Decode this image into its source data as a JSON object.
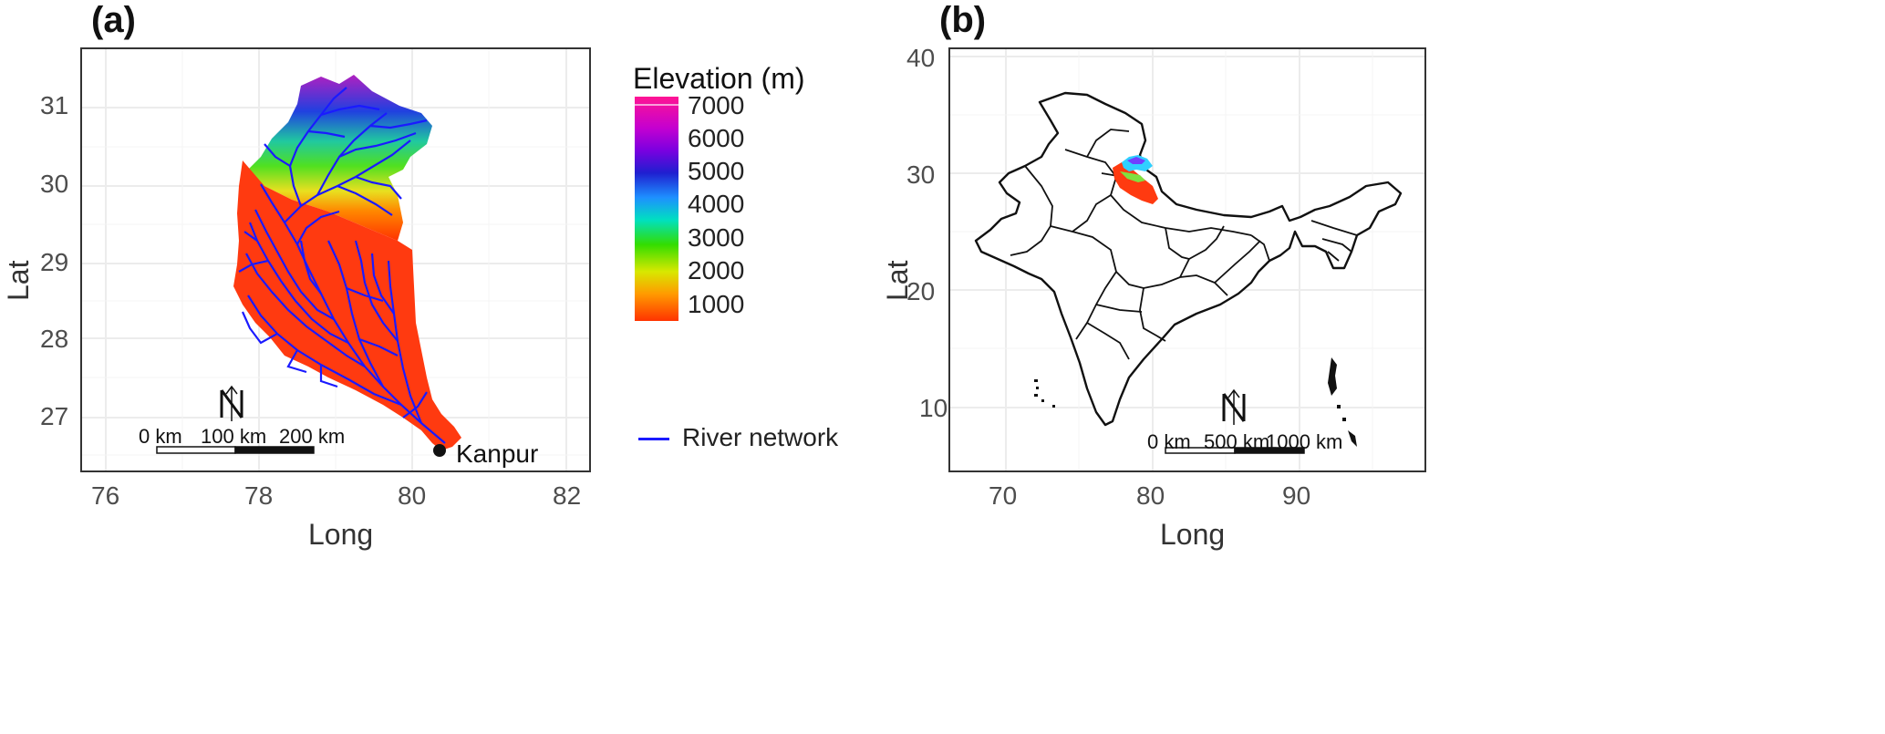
{
  "panel_a": {
    "label": "(a)",
    "x_axis": {
      "title": "Long",
      "ticks": [
        "76",
        "78",
        "80",
        "82"
      ]
    },
    "y_axis": {
      "title": "Lat",
      "ticks": [
        "31",
        "30",
        "29",
        "28",
        "27"
      ]
    },
    "scale_bar": [
      "0 km",
      "100 km",
      "200 km"
    ],
    "north_arrow": "N",
    "outlet": {
      "name": "Kanpur",
      "long": 80.35,
      "lat": 26.55
    },
    "elevation_legend": {
      "title": "Elevation (m)",
      "ticks": [
        "7000",
        "6000",
        "5000",
        "4000",
        "3000",
        "2000",
        "1000"
      ],
      "colors": [
        "#ff1493",
        "#9400d3",
        "#1f1fd0",
        "#1e90ff",
        "#00e0a0",
        "#33dd00",
        "#ffe000",
        "#ff8800",
        "#ff3300"
      ]
    },
    "river_legend": {
      "label": "River network",
      "color": "#1a1aff"
    }
  },
  "panel_b": {
    "label": "(b)",
    "x_axis": {
      "title": "Long",
      "ticks": [
        "70",
        "80",
        "90"
      ]
    },
    "y_axis": {
      "title": "Lat",
      "ticks": [
        "40",
        "30",
        "20",
        "10"
      ]
    },
    "scale_bar": [
      "0 km",
      "500 km",
      "1000 km"
    ],
    "north_arrow": "N"
  }
}
